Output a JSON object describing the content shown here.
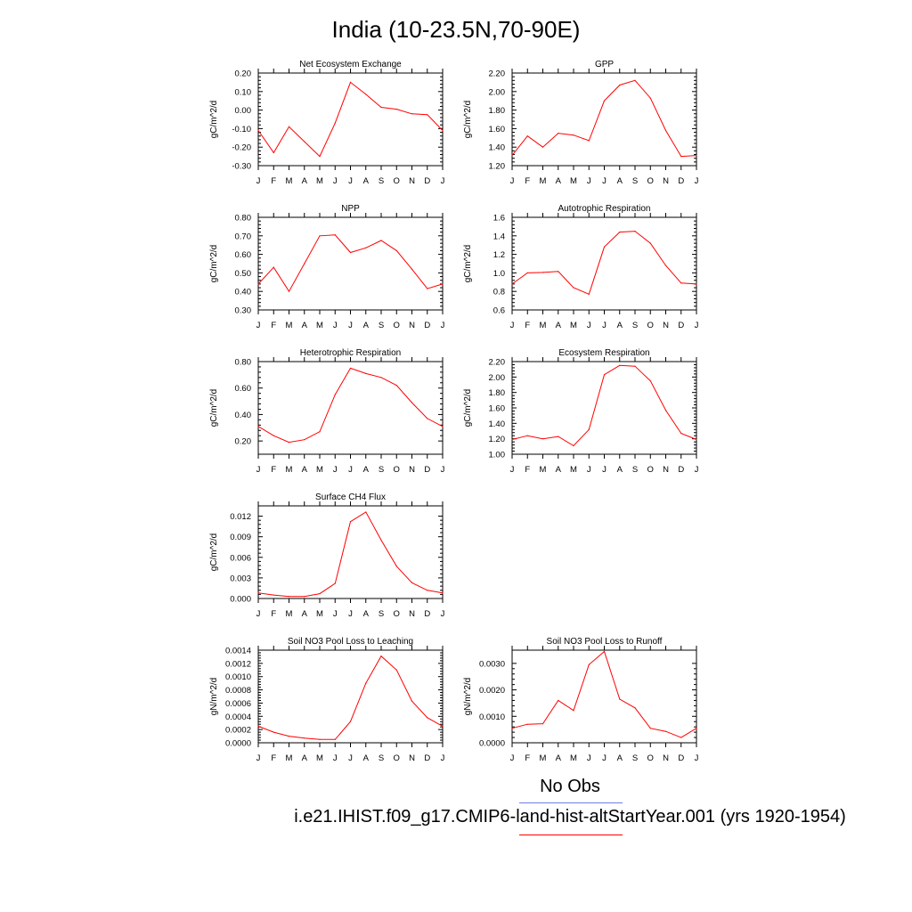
{
  "page": {
    "title": "India (10-23.5N,70-90E)",
    "legend": {
      "obs_label": "No Obs",
      "obs_color": "#6f7fe0",
      "model_label": "i.e21.IHIST.f09_g17.CMIP6-land-hist-altStartYear.001 (yrs 1920-1954)",
      "model_color": "#ff0000"
    }
  },
  "months": [
    "J",
    "F",
    "M",
    "A",
    "M",
    "J",
    "J",
    "A",
    "S",
    "O",
    "N",
    "D",
    "J"
  ],
  "chart_data": [
    {
      "type": "line",
      "title": "Net Ecosystem Exchange",
      "ylabel": "gC/m^2/d",
      "ylim": [
        -0.3,
        0.2
      ],
      "yticks": [
        "0.20",
        "0.10",
        "0.00",
        "-0.10",
        "-0.20",
        "-0.30"
      ],
      "ytick_values": [
        0.2,
        0.1,
        0.0,
        -0.1,
        -0.2,
        -0.3
      ],
      "series": [
        {
          "values": [
            -0.11,
            -0.23,
            -0.09,
            -0.17,
            -0.25,
            -0.07,
            0.15,
            0.085,
            0.015,
            0.005,
            -0.02,
            -0.025,
            -0.11
          ]
        }
      ]
    },
    {
      "type": "line",
      "title": "GPP",
      "ylabel": "gC/m^2/d",
      "ylim": [
        1.2,
        2.2
      ],
      "yticks": [
        "2.20",
        "2.00",
        "1.80",
        "1.60",
        "1.40",
        "1.20"
      ],
      "ytick_values": [
        2.2,
        2.0,
        1.8,
        1.6,
        1.4,
        1.2
      ],
      "series": [
        {
          "values": [
            1.31,
            1.52,
            1.4,
            1.55,
            1.53,
            1.47,
            1.9,
            2.07,
            2.12,
            1.93,
            1.58,
            1.3,
            1.31
          ]
        }
      ]
    },
    {
      "type": "line",
      "title": "NPP",
      "ylabel": "gC/m^2/d",
      "ylim": [
        0.3,
        0.8
      ],
      "yticks": [
        "0.80",
        "0.70",
        "0.60",
        "0.50",
        "0.40",
        "0.30"
      ],
      "ytick_values": [
        0.8,
        0.7,
        0.6,
        0.5,
        0.4,
        0.3
      ],
      "series": [
        {
          "values": [
            0.44,
            0.53,
            0.4,
            0.55,
            0.7,
            0.705,
            0.61,
            0.635,
            0.675,
            0.62,
            0.52,
            0.415,
            0.44
          ]
        }
      ]
    },
    {
      "type": "line",
      "title": "Autotrophic Respiration",
      "ylabel": "gC/m^2/d",
      "ylim": [
        0.6,
        1.6
      ],
      "yticks": [
        "1.6",
        "1.4",
        "1.2",
        "1.0",
        "0.8",
        "0.6"
      ],
      "ytick_values": [
        1.6,
        1.4,
        1.2,
        1.0,
        0.8,
        0.6
      ],
      "series": [
        {
          "values": [
            0.88,
            1.0,
            1.005,
            1.015,
            0.84,
            0.77,
            1.28,
            1.44,
            1.45,
            1.32,
            1.08,
            0.89,
            0.88
          ]
        }
      ]
    },
    {
      "type": "line",
      "title": "Heterotrophic Respiration",
      "ylabel": "gC/m^2/d",
      "ylim": [
        0.1,
        0.8
      ],
      "yticks": [
        "0.80",
        "0.60",
        "0.40",
        "0.20"
      ],
      "ytick_values": [
        0.8,
        0.6,
        0.4,
        0.2
      ],
      "series": [
        {
          "values": [
            0.31,
            0.24,
            0.19,
            0.21,
            0.27,
            0.55,
            0.75,
            0.71,
            0.68,
            0.62,
            0.49,
            0.37,
            0.31
          ]
        }
      ]
    },
    {
      "type": "line",
      "title": "Ecosystem Respiration",
      "ylabel": "gC/m^2/d",
      "ylim": [
        1.0,
        2.2
      ],
      "yticks": [
        "2.20",
        "2.00",
        "1.80",
        "1.60",
        "1.40",
        "1.20",
        "1.00"
      ],
      "ytick_values": [
        2.2,
        2.0,
        1.8,
        1.6,
        1.4,
        1.2,
        1.0
      ],
      "series": [
        {
          "values": [
            1.19,
            1.24,
            1.2,
            1.23,
            1.11,
            1.32,
            2.03,
            2.15,
            2.14,
            1.95,
            1.57,
            1.27,
            1.19
          ]
        }
      ]
    },
    {
      "type": "line",
      "title": "Surface CH4 Flux",
      "ylabel": "gC/m^2/d",
      "ylim": [
        0.0,
        0.0135
      ],
      "yticks": [
        "0.012",
        "0.009",
        "0.006",
        "0.003",
        "0.000"
      ],
      "ytick_values": [
        0.012,
        0.009,
        0.006,
        0.003,
        0.0
      ],
      "series": [
        {
          "values": [
            0.0008,
            0.0005,
            0.0003,
            0.0003,
            0.0007,
            0.0022,
            0.0112,
            0.0126,
            0.0085,
            0.0047,
            0.0023,
            0.0012,
            0.0008
          ]
        }
      ]
    },
    {
      "type": "line",
      "title": "Soil NO3 Pool Loss to Leaching",
      "ylabel": "gN/m^2/d",
      "ylim": [
        0.0,
        0.0014
      ],
      "yticks": [
        "0.0014",
        "0.0012",
        "0.0010",
        "0.0008",
        "0.0006",
        "0.0004",
        "0.0002",
        "0.0000"
      ],
      "ytick_values": [
        0.0014,
        0.0012,
        0.001,
        0.0008,
        0.0006,
        0.0004,
        0.0002,
        0.0
      ],
      "series": [
        {
          "values": [
            0.00025,
            0.00016,
            0.0001,
            7e-05,
            5e-05,
            5e-05,
            0.00032,
            0.0009,
            0.00131,
            0.0011,
            0.00063,
            0.00038,
            0.00025
          ]
        }
      ]
    },
    {
      "type": "line",
      "title": "Soil NO3 Pool Loss to Runoff",
      "ylabel": "gN/m^2/d",
      "ylim": [
        0.0,
        0.0035
      ],
      "yticks": [
        "0.0030",
        "0.0020",
        "0.0010",
        "0.0000"
      ],
      "ytick_values": [
        0.003,
        0.002,
        0.001,
        0.0
      ],
      "series": [
        {
          "values": [
            0.00055,
            0.0007,
            0.00072,
            0.0016,
            0.00122,
            0.00295,
            0.00345,
            0.00165,
            0.00132,
            0.00055,
            0.00043,
            0.0002,
            0.00055
          ]
        }
      ]
    }
  ]
}
